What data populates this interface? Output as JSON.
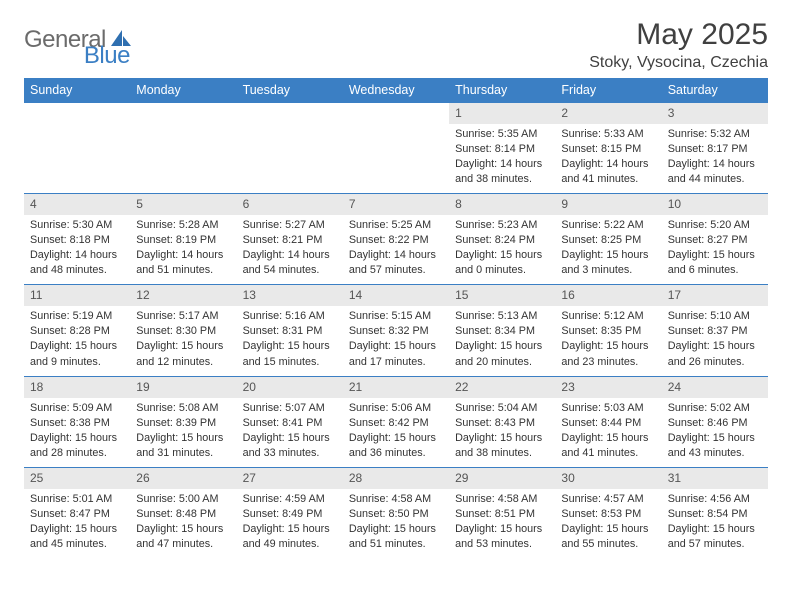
{
  "brand": {
    "general": "General",
    "blue": "Blue"
  },
  "header": {
    "title": "May 2025",
    "location": "Stoky, Vysocina, Czechia"
  },
  "colors": {
    "header_bg": "#3b7fc4",
    "header_text": "#ffffff",
    "daynum_bg": "#e9e9e9",
    "border": "#3b7fc4",
    "text": "#333333",
    "title": "#404040"
  },
  "weekdays": [
    "Sunday",
    "Monday",
    "Tuesday",
    "Wednesday",
    "Thursday",
    "Friday",
    "Saturday"
  ],
  "weeks": [
    [
      null,
      null,
      null,
      null,
      {
        "n": "1",
        "sr": "5:35 AM",
        "ss": "8:14 PM",
        "dl": "14 hours and 38 minutes."
      },
      {
        "n": "2",
        "sr": "5:33 AM",
        "ss": "8:15 PM",
        "dl": "14 hours and 41 minutes."
      },
      {
        "n": "3",
        "sr": "5:32 AM",
        "ss": "8:17 PM",
        "dl": "14 hours and 44 minutes."
      }
    ],
    [
      {
        "n": "4",
        "sr": "5:30 AM",
        "ss": "8:18 PM",
        "dl": "14 hours and 48 minutes."
      },
      {
        "n": "5",
        "sr": "5:28 AM",
        "ss": "8:19 PM",
        "dl": "14 hours and 51 minutes."
      },
      {
        "n": "6",
        "sr": "5:27 AM",
        "ss": "8:21 PM",
        "dl": "14 hours and 54 minutes."
      },
      {
        "n": "7",
        "sr": "5:25 AM",
        "ss": "8:22 PM",
        "dl": "14 hours and 57 minutes."
      },
      {
        "n": "8",
        "sr": "5:23 AM",
        "ss": "8:24 PM",
        "dl": "15 hours and 0 minutes."
      },
      {
        "n": "9",
        "sr": "5:22 AM",
        "ss": "8:25 PM",
        "dl": "15 hours and 3 minutes."
      },
      {
        "n": "10",
        "sr": "5:20 AM",
        "ss": "8:27 PM",
        "dl": "15 hours and 6 minutes."
      }
    ],
    [
      {
        "n": "11",
        "sr": "5:19 AM",
        "ss": "8:28 PM",
        "dl": "15 hours and 9 minutes."
      },
      {
        "n": "12",
        "sr": "5:17 AM",
        "ss": "8:30 PM",
        "dl": "15 hours and 12 minutes."
      },
      {
        "n": "13",
        "sr": "5:16 AM",
        "ss": "8:31 PM",
        "dl": "15 hours and 15 minutes."
      },
      {
        "n": "14",
        "sr": "5:15 AM",
        "ss": "8:32 PM",
        "dl": "15 hours and 17 minutes."
      },
      {
        "n": "15",
        "sr": "5:13 AM",
        "ss": "8:34 PM",
        "dl": "15 hours and 20 minutes."
      },
      {
        "n": "16",
        "sr": "5:12 AM",
        "ss": "8:35 PM",
        "dl": "15 hours and 23 minutes."
      },
      {
        "n": "17",
        "sr": "5:10 AM",
        "ss": "8:37 PM",
        "dl": "15 hours and 26 minutes."
      }
    ],
    [
      {
        "n": "18",
        "sr": "5:09 AM",
        "ss": "8:38 PM",
        "dl": "15 hours and 28 minutes."
      },
      {
        "n": "19",
        "sr": "5:08 AM",
        "ss": "8:39 PM",
        "dl": "15 hours and 31 minutes."
      },
      {
        "n": "20",
        "sr": "5:07 AM",
        "ss": "8:41 PM",
        "dl": "15 hours and 33 minutes."
      },
      {
        "n": "21",
        "sr": "5:06 AM",
        "ss": "8:42 PM",
        "dl": "15 hours and 36 minutes."
      },
      {
        "n": "22",
        "sr": "5:04 AM",
        "ss": "8:43 PM",
        "dl": "15 hours and 38 minutes."
      },
      {
        "n": "23",
        "sr": "5:03 AM",
        "ss": "8:44 PM",
        "dl": "15 hours and 41 minutes."
      },
      {
        "n": "24",
        "sr": "5:02 AM",
        "ss": "8:46 PM",
        "dl": "15 hours and 43 minutes."
      }
    ],
    [
      {
        "n": "25",
        "sr": "5:01 AM",
        "ss": "8:47 PM",
        "dl": "15 hours and 45 minutes."
      },
      {
        "n": "26",
        "sr": "5:00 AM",
        "ss": "8:48 PM",
        "dl": "15 hours and 47 minutes."
      },
      {
        "n": "27",
        "sr": "4:59 AM",
        "ss": "8:49 PM",
        "dl": "15 hours and 49 minutes."
      },
      {
        "n": "28",
        "sr": "4:58 AM",
        "ss": "8:50 PM",
        "dl": "15 hours and 51 minutes."
      },
      {
        "n": "29",
        "sr": "4:58 AM",
        "ss": "8:51 PM",
        "dl": "15 hours and 53 minutes."
      },
      {
        "n": "30",
        "sr": "4:57 AM",
        "ss": "8:53 PM",
        "dl": "15 hours and 55 minutes."
      },
      {
        "n": "31",
        "sr": "4:56 AM",
        "ss": "8:54 PM",
        "dl": "15 hours and 57 minutes."
      }
    ]
  ],
  "labels": {
    "sunrise": "Sunrise:",
    "sunset": "Sunset:",
    "daylight": "Daylight:"
  }
}
